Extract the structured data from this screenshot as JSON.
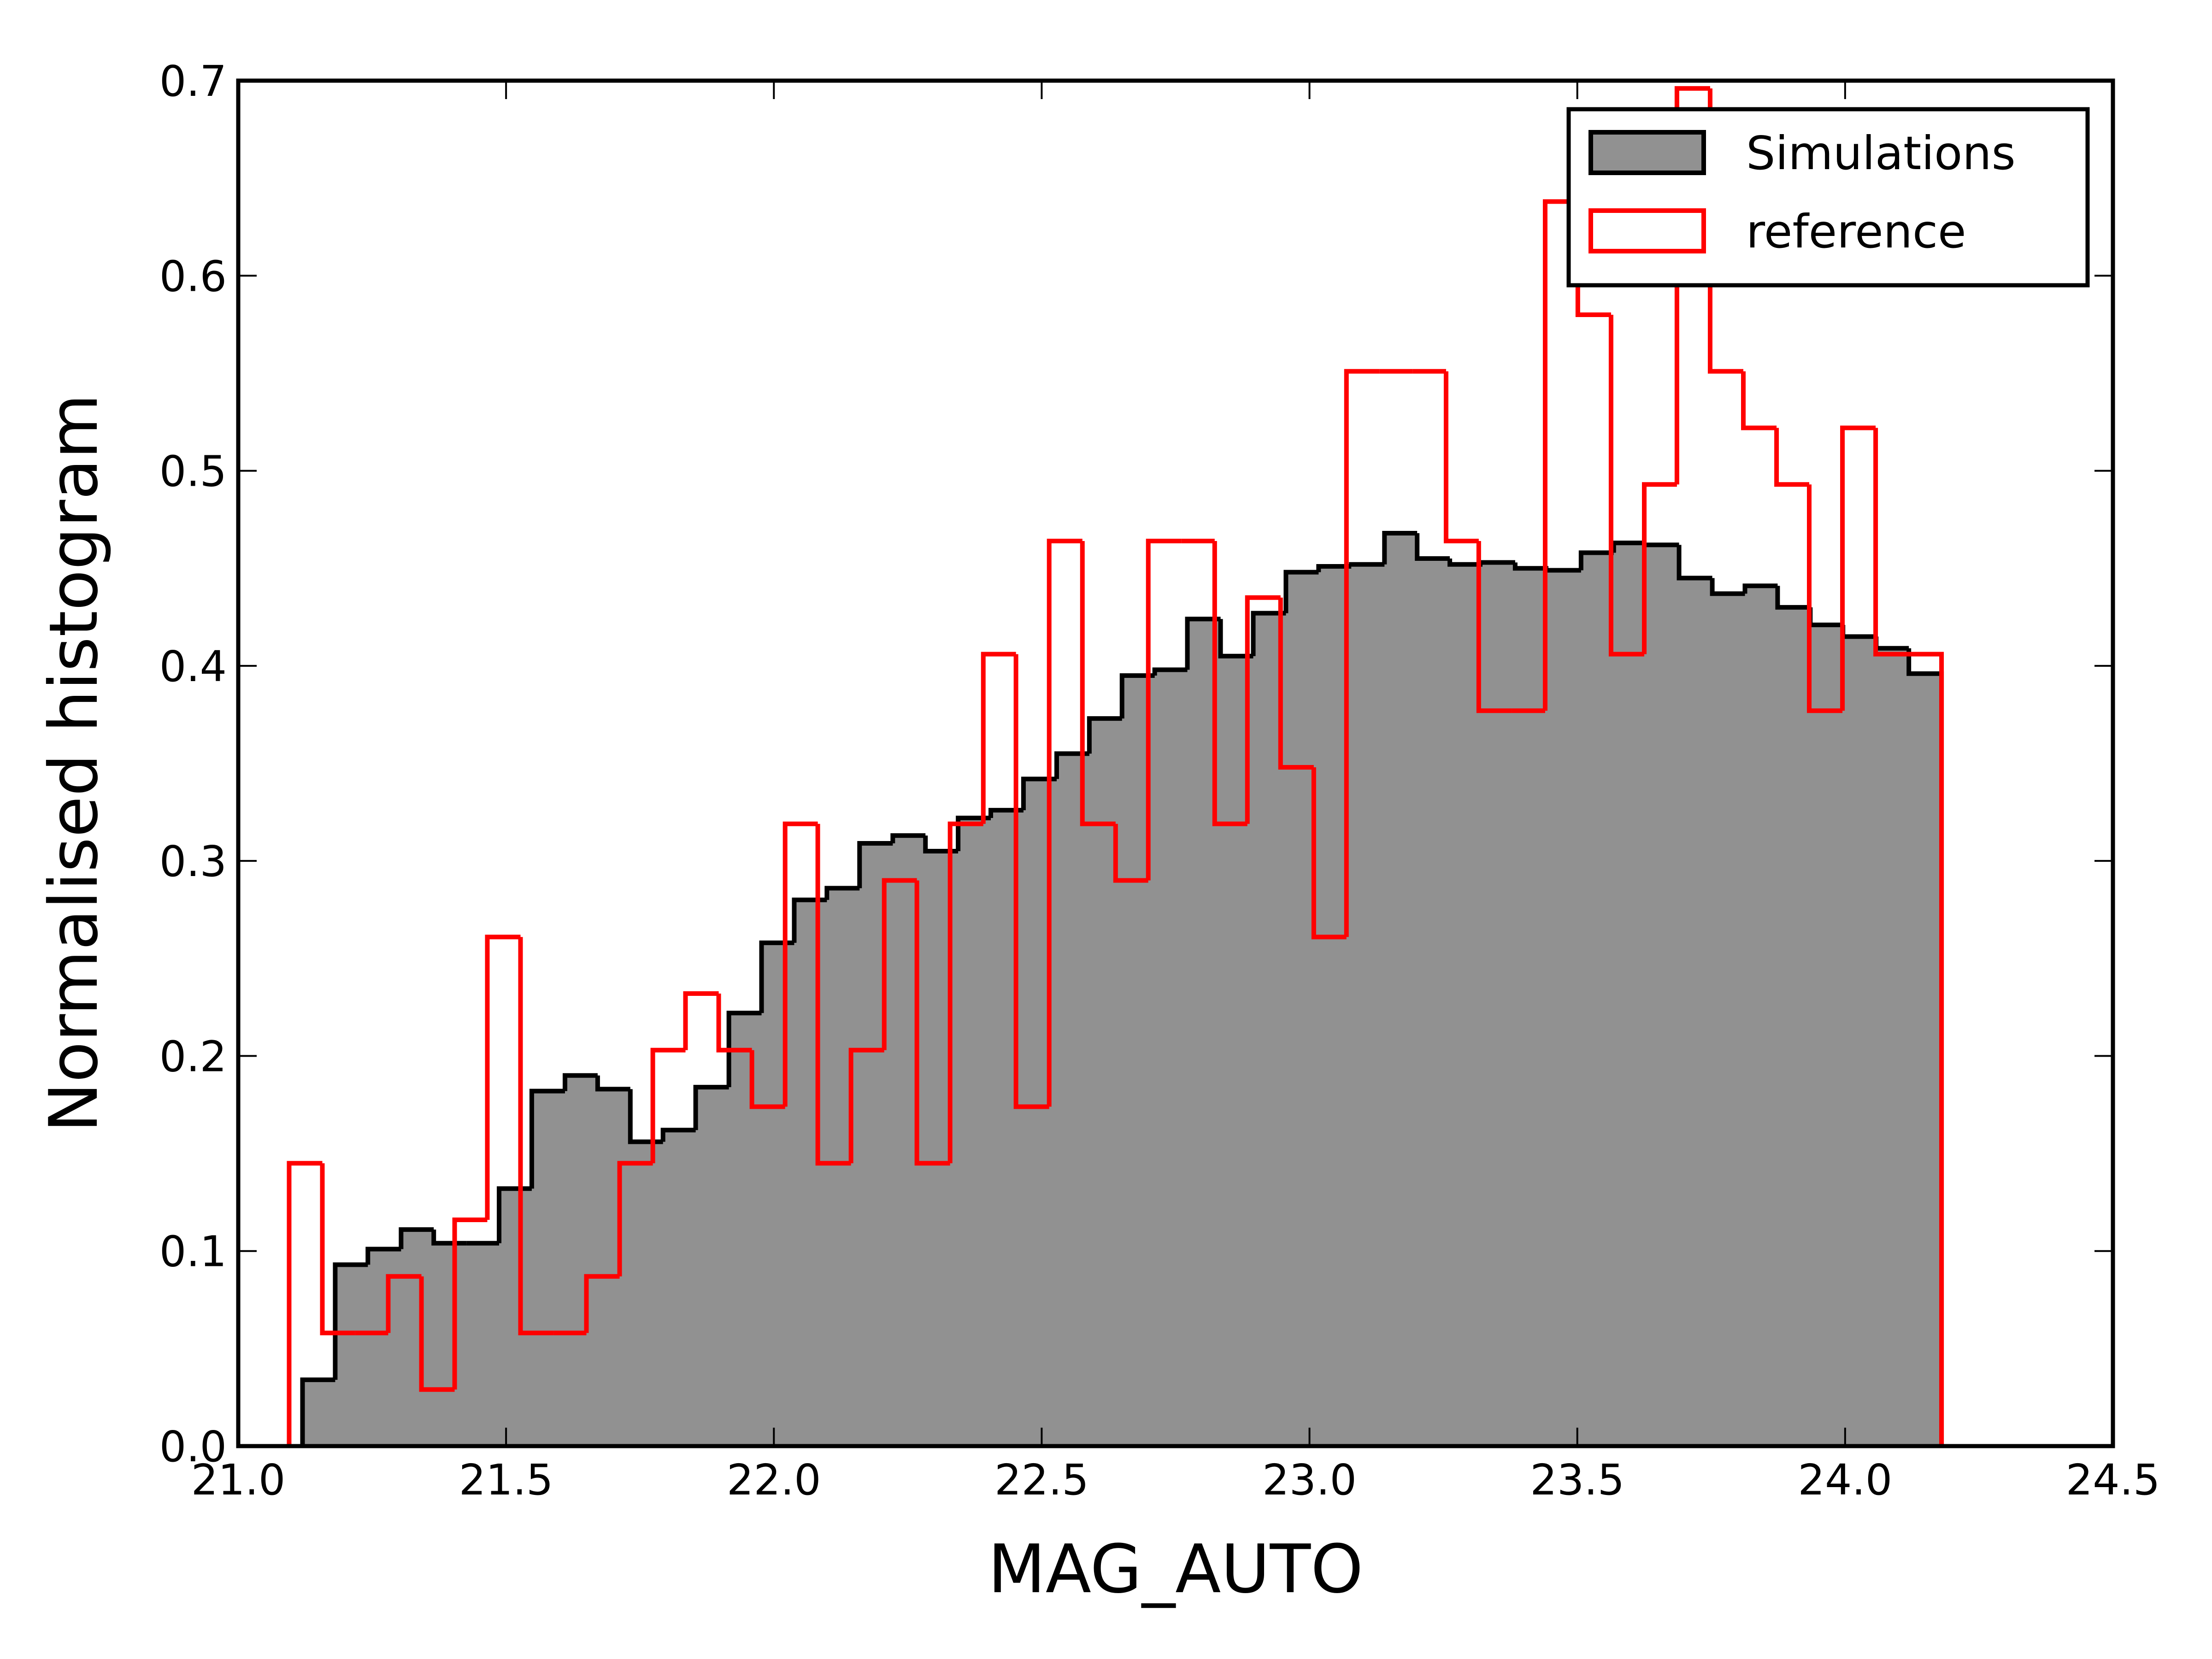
{
  "chart_data": {
    "type": "histogram",
    "xlabel": "MAG_AUTO",
    "ylabel": "Normalised histogram",
    "xlim": [
      21.0,
      24.5
    ],
    "ylim": [
      0,
      0.7
    ],
    "xticks": [
      {
        "value": 21.0,
        "label": "21.0"
      },
      21.5,
      {
        "value": 22.0,
        "label": "22.0"
      },
      22.5,
      {
        "value": 23.0,
        "label": "23.0"
      },
      23.5,
      {
        "value": 24.0,
        "label": "24.0"
      },
      24.5
    ],
    "yticks": [
      {
        "value": 0,
        "label": "0.0"
      },
      0.1,
      0.2,
      0.3,
      0.4,
      0.5,
      0.6,
      0.7
    ],
    "legend": "upper right",
    "series": [
      {
        "name": "Simulations",
        "color": "#919191",
        "edgecolor": "#000000",
        "filled": true,
        "bins": [
          21.12,
          21.181,
          21.242,
          21.304,
          21.365,
          21.426,
          21.487,
          21.548,
          21.61,
          21.671,
          21.732,
          21.793,
          21.854,
          21.916,
          21.977,
          22.038,
          22.099,
          22.16,
          22.222,
          22.283,
          22.344,
          22.405,
          22.466,
          22.528,
          22.589,
          22.65,
          22.711,
          22.772,
          22.834,
          22.895,
          22.956,
          23.017,
          23.078,
          23.14,
          23.201,
          23.262,
          23.323,
          23.384,
          23.446,
          23.507,
          23.568,
          23.629,
          23.69,
          23.752,
          23.813,
          23.874,
          23.935,
          23.996,
          24.058,
          24.119,
          24.18
        ],
        "values": [
          0.034,
          0.093,
          0.101,
          0.111,
          0.104,
          0.104,
          0.132,
          0.182,
          0.19,
          0.183,
          0.156,
          0.162,
          0.184,
          0.222,
          0.258,
          0.28,
          0.286,
          0.309,
          0.313,
          0.305,
          0.322,
          0.326,
          0.342,
          0.355,
          0.373,
          0.395,
          0.398,
          0.424,
          0.405,
          0.427,
          0.448,
          0.451,
          0.452,
          0.468,
          0.455,
          0.452,
          0.453,
          0.45,
          0.449,
          0.458,
          0.463,
          0.462,
          0.445,
          0.437,
          0.441,
          0.43,
          0.421,
          0.415,
          0.409,
          0.396
        ]
      },
      {
        "name": "reference",
        "color": "#ff0000",
        "edgecolor": "#ff0000",
        "filled": false,
        "bins": [
          21.095,
          21.157,
          21.218,
          21.28,
          21.342,
          21.404,
          21.465,
          21.527,
          21.589,
          21.65,
          21.712,
          21.774,
          21.835,
          21.897,
          21.959,
          22.021,
          22.082,
          22.144,
          22.206,
          22.267,
          22.329,
          22.391,
          22.452,
          22.514,
          22.576,
          22.638,
          22.699,
          22.761,
          22.823,
          22.884,
          22.946,
          23.008,
          23.069,
          23.131,
          23.193,
          23.255,
          23.316,
          23.378,
          23.44,
          23.501,
          23.563,
          23.625,
          23.686,
          23.748,
          23.81,
          23.872,
          23.933,
          23.995,
          24.057,
          24.118,
          24.18
        ],
        "values": [
          0.145,
          0.058,
          0.058,
          0.087,
          0.029,
          0.116,
          0.261,
          0.058,
          0.058,
          0.087,
          0.145,
          0.203,
          0.232,
          0.203,
          0.174,
          0.319,
          0.145,
          0.203,
          0.29,
          0.145,
          0.319,
          0.406,
          0.174,
          0.464,
          0.319,
          0.29,
          0.464,
          0.464,
          0.319,
          0.435,
          0.348,
          0.261,
          0.551,
          0.551,
          0.551,
          0.464,
          0.377,
          0.377,
          0.638,
          0.58,
          0.406,
          0.493,
          0.696,
          0.551,
          0.522,
          0.493,
          0.377,
          0.522,
          0.406,
          0.406
        ]
      }
    ]
  }
}
